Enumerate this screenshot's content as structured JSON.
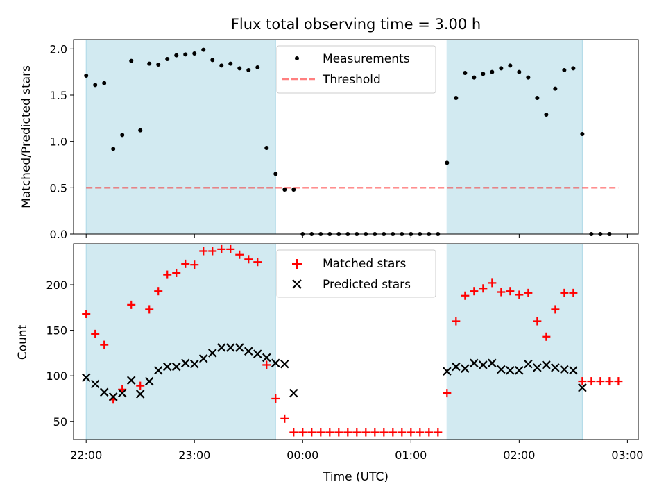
{
  "chart_data": [
    {
      "type": "scatter",
      "title": "Flux total observing time = 3.00 h",
      "xlabel": "",
      "ylabel": "Matched/Predicted stars",
      "xlim": [
        "21:53",
        "03:06"
      ],
      "ylim": [
        0,
        2.1
      ],
      "yticks": [
        "0.0",
        "0.5",
        "1.0",
        "1.5",
        "2.0"
      ],
      "shaded_periods": [
        [
          "22:00",
          "23:45"
        ],
        [
          "01:20",
          "02:35"
        ]
      ],
      "shade_color": "#add8e6",
      "threshold": {
        "value": 0.5,
        "from": "22:00",
        "to": "02:55",
        "color": "#ff0000"
      },
      "legend": {
        "position": "top-center",
        "entries": [
          "Measurements",
          "Threshold"
        ]
      },
      "series": [
        {
          "name": "Measurements",
          "color": "#000000",
          "marker": "dot",
          "x": [
            "22:00",
            "22:05",
            "22:10",
            "22:15",
            "22:20",
            "22:25",
            "22:30",
            "22:35",
            "22:40",
            "22:45",
            "22:50",
            "22:55",
            "23:00",
            "23:05",
            "23:10",
            "23:15",
            "23:20",
            "23:25",
            "23:30",
            "23:35",
            "23:40",
            "23:45",
            "23:50",
            "23:55",
            "00:00",
            "00:05",
            "00:10",
            "00:15",
            "00:20",
            "00:25",
            "00:30",
            "00:35",
            "00:40",
            "00:45",
            "00:50",
            "00:55",
            "01:00",
            "01:05",
            "01:10",
            "01:15",
            "01:20",
            "01:25",
            "01:30",
            "01:35",
            "01:40",
            "01:45",
            "01:50",
            "01:55",
            "02:00",
            "02:05",
            "02:10",
            "02:15",
            "02:20",
            "02:25",
            "02:30",
            "02:35",
            "02:40",
            "02:45",
            "02:50",
            "02:55"
          ],
          "y": [
            1.71,
            1.61,
            1.63,
            0.92,
            1.07,
            1.87,
            1.12,
            1.84,
            1.83,
            1.89,
            1.93,
            1.94,
            1.95,
            1.99,
            1.88,
            1.82,
            1.84,
            1.79,
            1.77,
            1.8,
            0.93,
            0.65,
            0.48,
            0.48,
            0,
            0,
            0,
            0,
            0,
            0,
            0,
            0,
            0,
            0,
            0,
            0,
            0,
            0,
            0,
            0,
            0.77,
            1.47,
            1.74,
            1.69,
            1.73,
            1.75,
            1.79,
            1.82,
            1.75,
            1.69,
            1.47,
            1.29,
            1.57,
            1.77,
            1.79,
            1.08,
            0,
            0,
            0,
            null
          ]
        }
      ]
    },
    {
      "type": "scatter",
      "title": "",
      "xlabel": "Time (UTC)",
      "ylabel": "Count",
      "xlim": [
        "21:53",
        "03:06"
      ],
      "ylim": [
        30,
        245
      ],
      "yticks": [
        "50",
        "100",
        "150",
        "200"
      ],
      "xticks": [
        "22:00",
        "23:00",
        "00:00",
        "01:00",
        "02:00",
        "03:00"
      ],
      "legend": {
        "position": "top-center",
        "entries": [
          "Matched stars",
          "Predicted stars"
        ]
      },
      "series": [
        {
          "name": "Matched stars",
          "color": "#ff0000",
          "marker": "plus",
          "x": [
            "22:00",
            "22:05",
            "22:10",
            "22:15",
            "22:20",
            "22:25",
            "22:30",
            "22:35",
            "22:40",
            "22:45",
            "22:50",
            "22:55",
            "23:00",
            "23:05",
            "23:10",
            "23:15",
            "23:20",
            "23:25",
            "23:30",
            "23:35",
            "23:40",
            "23:45",
            "23:50",
            "23:55",
            "00:00",
            "00:05",
            "00:10",
            "00:15",
            "00:20",
            "00:25",
            "00:30",
            "00:35",
            "00:40",
            "00:45",
            "00:50",
            "00:55",
            "01:00",
            "01:05",
            "01:10",
            "01:15",
            "01:20",
            "01:25",
            "01:30",
            "01:35",
            "01:40",
            "01:45",
            "01:50",
            "01:55",
            "02:00",
            "02:05",
            "02:10",
            "02:15",
            "02:20",
            "02:25",
            "02:30",
            "02:35",
            "02:40",
            "02:45",
            "02:50",
            "02:55"
          ],
          "y": [
            168,
            146,
            134,
            74,
            85,
            178,
            89,
            173,
            193,
            211,
            213,
            223,
            222,
            237,
            237,
            239,
            239,
            233,
            228,
            225,
            112,
            75,
            53,
            38,
            38,
            38,
            38,
            38,
            38,
            38,
            38,
            38,
            38,
            38,
            38,
            38,
            38,
            38,
            38,
            38,
            81,
            160,
            188,
            193,
            196,
            202,
            192,
            193,
            189,
            191,
            160,
            143,
            173,
            191,
            191,
            94,
            94,
            94,
            94,
            94
          ]
        },
        {
          "name": "Predicted stars",
          "color": "#000000",
          "marker": "x",
          "x": [
            "22:00",
            "22:05",
            "22:10",
            "22:15",
            "22:20",
            "22:25",
            "22:30",
            "22:35",
            "22:40",
            "22:45",
            "22:50",
            "22:55",
            "23:00",
            "23:05",
            "23:10",
            "23:15",
            "23:20",
            "23:25",
            "23:30",
            "23:35",
            "23:40",
            "23:45",
            "23:50",
            "23:55",
            "01:20",
            "01:25",
            "01:30",
            "01:35",
            "01:40",
            "01:45",
            "01:50",
            "01:55",
            "02:00",
            "02:05",
            "02:10",
            "02:15",
            "02:20",
            "02:25",
            "02:30",
            "02:35"
          ],
          "y": [
            98,
            91,
            82,
            77,
            81,
            95,
            80,
            94,
            106,
            110,
            110,
            114,
            113,
            119,
            125,
            131,
            131,
            131,
            127,
            124,
            120,
            114,
            113,
            81,
            105,
            110,
            108,
            114,
            112,
            114,
            107,
            106,
            106,
            113,
            109,
            112,
            109,
            107,
            106,
            87
          ]
        }
      ]
    }
  ]
}
